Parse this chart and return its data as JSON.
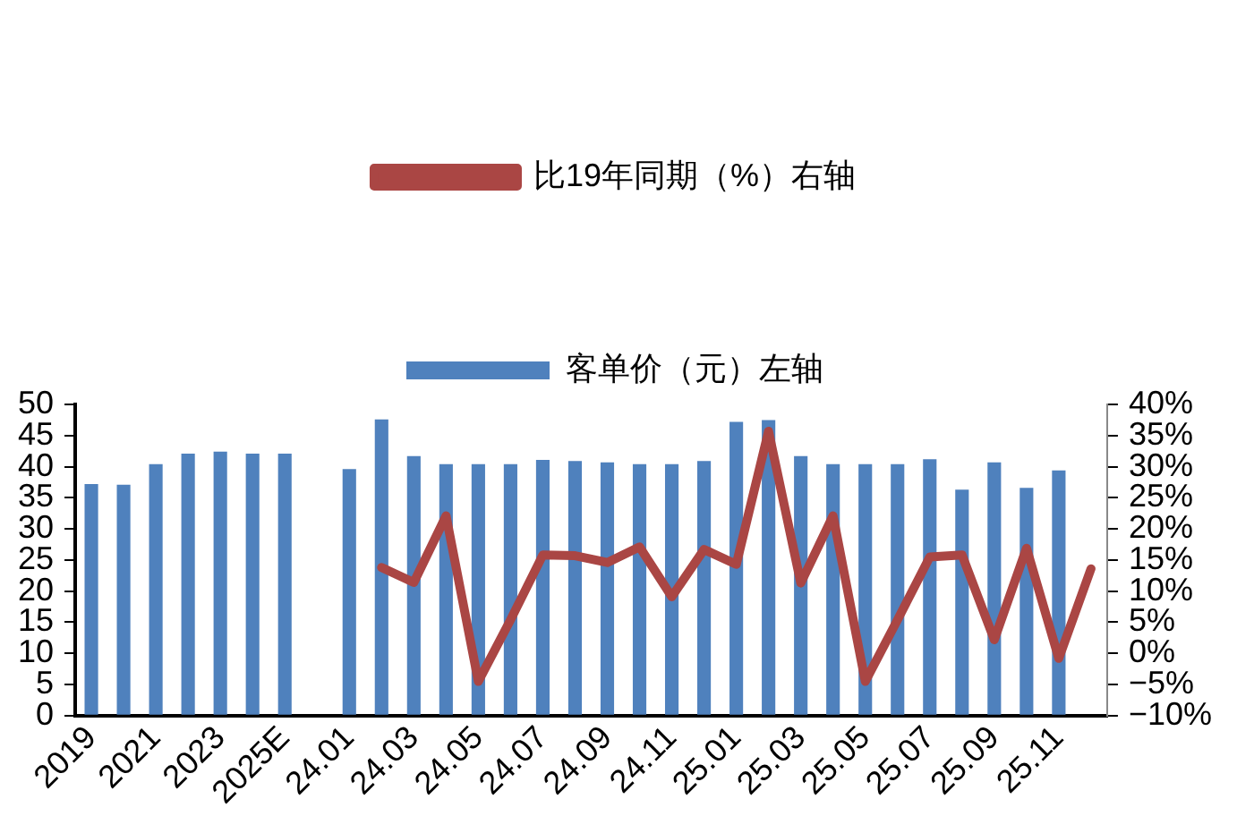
{
  "chart_data": {
    "type": "bar",
    "categories": [
      "2019",
      null,
      "2021",
      null,
      "2023",
      null,
      "2025E",
      null,
      "24.01",
      null,
      "24.03",
      null,
      "24.05",
      null,
      "24.07",
      null,
      "24.09",
      null,
      "24.11",
      null,
      "25.01",
      null,
      "25.03",
      null,
      "25.05",
      null,
      "25.07",
      null,
      "25.09",
      null,
      "25.11",
      null
    ],
    "series": [
      {
        "name": "客单价（元）左轴",
        "color": "#4f81bd",
        "values": [
          37.2,
          37.1,
          40.4,
          42.1,
          42.4,
          42.1,
          42.1,
          null,
          39.6,
          47.6,
          41.7,
          40.4,
          40.4,
          40.4,
          41.1,
          40.9,
          40.7,
          40.4,
          40.4,
          40.9,
          47.2,
          47.5,
          41.7,
          40.4,
          40.4,
          40.4,
          41.2,
          36.3,
          40.7,
          36.6,
          39.4,
          null
        ]
      },
      {
        "name": "比19年同期（%）右轴",
        "type": "line",
        "axis": "y2",
        "color": "#aa4644",
        "marker": "none",
        "line_style": "solid",
        "values": [
          null,
          null,
          null,
          null,
          null,
          null,
          null,
          null,
          null,
          13.8,
          11.4,
          22.1,
          -4.5,
          5.4,
          15.8,
          15.7,
          14.6,
          17.1,
          9.1,
          16.7,
          14.3,
          35.7,
          11.3,
          22.1,
          -4.5,
          5.4,
          15.5,
          15.8,
          2.2,
          16.9,
          -0.8,
          13.6
        ]
      }
    ],
    "ylim": [
      0,
      50
    ],
    "yticks": [
      0,
      5,
      10,
      15,
      20,
      25,
      30,
      35,
      40,
      45,
      50
    ],
    "y2lim": [
      -10,
      40
    ],
    "y2ticks": [
      {
        "value": -10,
        "label": "−10%"
      },
      {
        "value": -5,
        "label": "−5%"
      },
      {
        "value": 0,
        "label": "0%"
      },
      {
        "value": 5,
        "label": "5%"
      },
      {
        "value": 10,
        "label": "10%"
      },
      {
        "value": 15,
        "label": "15%"
      },
      {
        "value": 20,
        "label": "20%"
      },
      {
        "value": 25,
        "label": "25%"
      },
      {
        "value": 30,
        "label": "30%"
      },
      {
        "value": 35,
        "label": "35%"
      },
      {
        "value": 40,
        "label": "40%"
      }
    ],
    "grid": false,
    "legend": "top"
  }
}
